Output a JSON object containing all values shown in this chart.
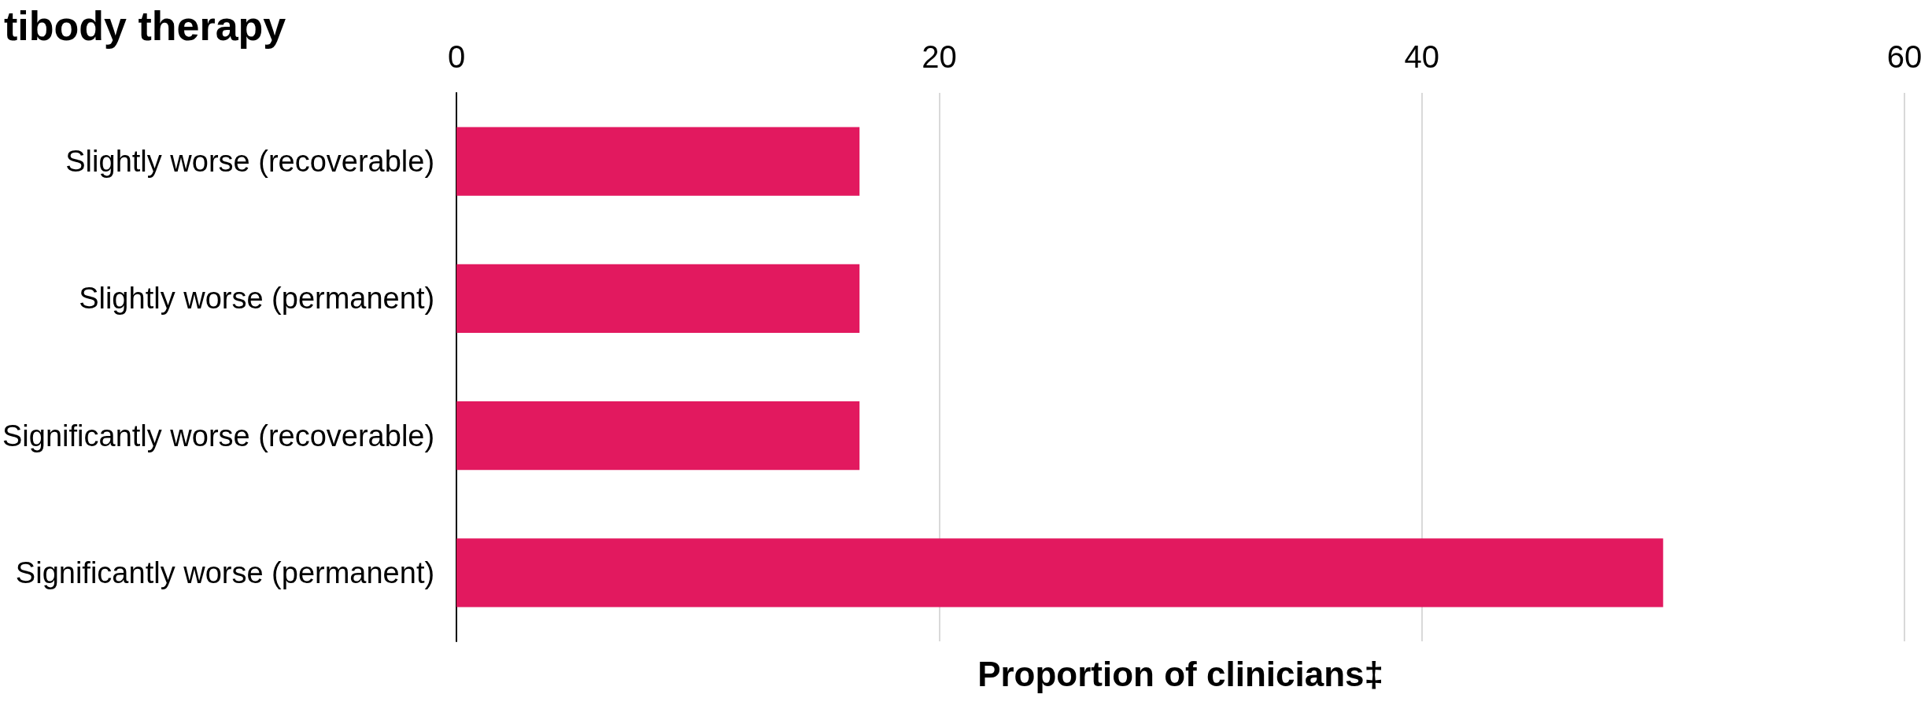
{
  "chart_data": {
    "type": "bar",
    "orientation": "horizontal",
    "title": "tibody therapy",
    "xlabel": "Proportion of clinicians‡",
    "categories": [
      "Slightly worse (recoverable)",
      "Slightly worse (permanent)",
      "Significantly worse (recoverable)",
      "Significantly worse (permanent)"
    ],
    "values": [
      16.7,
      16.7,
      16.7,
      50
    ],
    "color": "#e2195f",
    "xlim": [
      0,
      60
    ],
    "xticks": [
      0,
      20,
      40,
      60
    ],
    "grid": "x"
  }
}
